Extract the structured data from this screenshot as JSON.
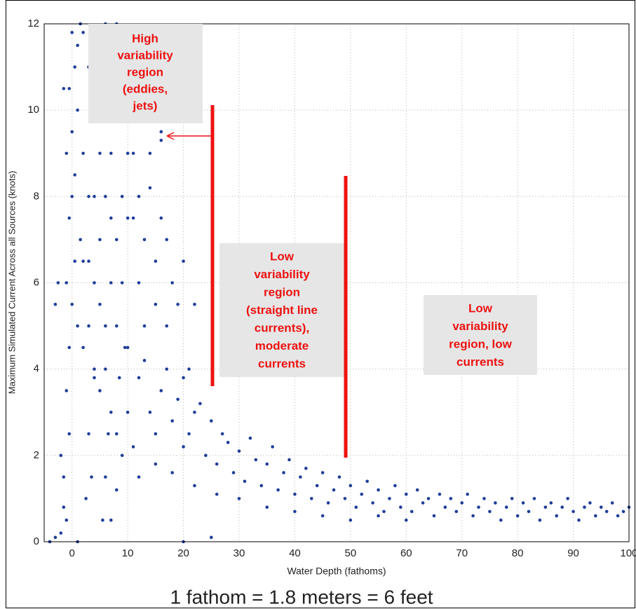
{
  "chart_data": {
    "type": "scatter",
    "xlabel": "Water Depth (fathoms)",
    "ylabel": "Maximum Simulated Current Across all Sources (knots)",
    "caption": "1 fathom = 1.8 meters = 6 feet",
    "annotations": [
      {
        "lines": [
          "High",
          "variability",
          "region",
          "(eddies,",
          "jets)"
        ]
      },
      {
        "lines": [
          "Low",
          "variability",
          "region",
          "(straight line",
          "currents),",
          "moderate",
          "currents"
        ]
      },
      {
        "lines": [
          "Low",
          "variability",
          "region, low",
          "currents"
        ]
      }
    ],
    "xlim": [
      -5,
      100
    ],
    "xticks": [
      0,
      10,
      20,
      30,
      40,
      50,
      60,
      70,
      80,
      90,
      100
    ],
    "ylim": [
      0,
      12
    ],
    "yticks": [
      0,
      2,
      4,
      6,
      8,
      10,
      12
    ],
    "grid": true,
    "series": [
      {
        "color": "#1f3d99",
        "x": [
          -1,
          -1.5,
          -0.5,
          -1,
          -0.5,
          0,
          -1,
          0.5,
          -0.5,
          0,
          0.5,
          -1,
          0,
          1,
          -0.5,
          0.5,
          1,
          1.5,
          -2,
          -3,
          -4,
          -2.5,
          -3,
          -1.5,
          0,
          2,
          1.5,
          1,
          -2,
          -1.5,
          2,
          3,
          4,
          5,
          6,
          7,
          8,
          9,
          3,
          4,
          5,
          6,
          7,
          8,
          2,
          3,
          4,
          5,
          6,
          7,
          8,
          9,
          10,
          2,
          3,
          4,
          5,
          6,
          7,
          8,
          9,
          10,
          9.5,
          8.5,
          6,
          5,
          4,
          3,
          3.5,
          2.5,
          6,
          6.5,
          5.5,
          7,
          8,
          11,
          12,
          13,
          14,
          15,
          16,
          17,
          12,
          14,
          16,
          18,
          13,
          15,
          17,
          19,
          20,
          22,
          21,
          16,
          11,
          10,
          10,
          11,
          12,
          13,
          14,
          15,
          16,
          17,
          18,
          19,
          20,
          20,
          21,
          22,
          23,
          24,
          25,
          26,
          27,
          28,
          29,
          30,
          31,
          32,
          33,
          34,
          35,
          36,
          37,
          38,
          39,
          40,
          41,
          42,
          43,
          44,
          45,
          46,
          47,
          48,
          49,
          50,
          51,
          52,
          53,
          54,
          55,
          56,
          57,
          58,
          59,
          60,
          61,
          62,
          63,
          64,
          65,
          66,
          67,
          68,
          69,
          70,
          71,
          72,
          73,
          74,
          75,
          76,
          77,
          78,
          79,
          80,
          81,
          82,
          83,
          84,
          85,
          86,
          87,
          88,
          89,
          90,
          91,
          92,
          93,
          94,
          95,
          96,
          97,
          98,
          99,
          100,
          12,
          15,
          18,
          22,
          26,
          30,
          35,
          40,
          45,
          50,
          55,
          60,
          9,
          7,
          8,
          20,
          25,
          1
        ],
        "y": [
          0.5,
          1.5,
          2.5,
          3.5,
          4.5,
          5.5,
          6,
          6.5,
          7.5,
          8,
          8.5,
          9,
          9.5,
          10,
          10.5,
          11,
          11.5,
          12,
          0.2,
          0.1,
          0,
          6,
          5.5,
          10.5,
          11.8,
          11.8,
          7,
          5,
          2,
          0.8,
          4.5,
          5,
          6,
          7,
          8,
          9,
          10,
          11,
          8,
          10,
          11.5,
          12,
          11,
          12,
          9,
          11,
          4,
          5.5,
          5,
          6,
          7,
          8,
          9,
          6.5,
          6.5,
          8,
          9,
          10,
          7.5,
          5,
          6,
          7.5,
          4.5,
          3.8,
          4,
          3.5,
          3.8,
          2.5,
          1.5,
          1,
          1.5,
          2.5,
          0.5,
          3,
          2.5,
          7.5,
          8,
          7,
          8.2,
          6.5,
          7.5,
          7,
          6,
          9,
          9.5,
          6,
          5,
          5.5,
          5,
          5.5,
          6.5,
          5.5,
          4,
          9.3,
          9,
          3,
          4.5,
          2.2,
          3.8,
          4.2,
          3,
          2.5,
          3.5,
          4,
          2.8,
          3.3,
          3.8,
          2.2,
          2.5,
          3,
          3.2,
          2,
          2.8,
          1.8,
          2.5,
          2.3,
          1.6,
          2.1,
          1.4,
          2.4,
          1.9,
          1.3,
          1.8,
          2.2,
          1.2,
          1.6,
          1.9,
          1.1,
          1.5,
          1.7,
          1,
          1.3,
          1.6,
          0.9,
          1.2,
          1.5,
          1,
          1.3,
          0.8,
          1.1,
          1.4,
          0.9,
          1.2,
          0.7,
          1,
          1.3,
          0.8,
          1.1,
          0.7,
          1.2,
          0.9,
          1,
          0.6,
          1.1,
          0.8,
          1,
          0.7,
          0.9,
          1.1,
          0.6,
          0.8,
          1,
          0.7,
          0.9,
          0.5,
          0.8,
          1,
          0.6,
          0.9,
          0.7,
          1,
          0.5,
          0.8,
          0.9,
          0.6,
          0.8,
          1,
          0.7,
          0.5,
          0.8,
          0.9,
          0.6,
          0.8,
          0.7,
          0.9,
          0.6,
          0.7,
          0.8,
          1.5,
          1.8,
          1.6,
          1.3,
          1.1,
          1,
          0.8,
          0.7,
          0.6,
          0.5,
          0.6,
          0.5,
          2,
          0.5,
          1.2,
          0,
          0.1,
          0
        ]
      }
    ]
  }
}
